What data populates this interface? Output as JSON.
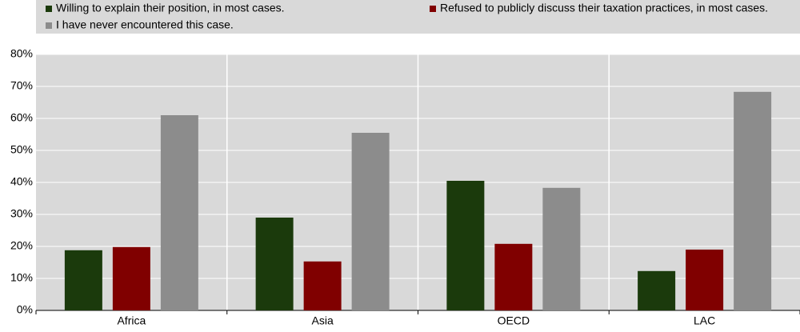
{
  "chart_data": {
    "type": "bar",
    "categories": [
      "Africa",
      "Asia",
      "OECD",
      "LAC"
    ],
    "series": [
      {
        "name": "Willing to explain their position, in most cases.",
        "color": "#1b3a0c",
        "values": [
          18.8,
          29,
          40.5,
          12.3
        ]
      },
      {
        "name": "Refused to publicly discuss their taxation practices, in most cases.",
        "color": "#800000",
        "values": [
          19.8,
          15.3,
          20.8,
          19
        ]
      },
      {
        "name": "I have never encountered this case.",
        "color": "#8c8c8c",
        "values": [
          61,
          55.5,
          38.3,
          68.3
        ]
      }
    ],
    "ylim": [
      0,
      80
    ],
    "yticks": [
      {
        "value": 0,
        "label": "0%"
      },
      {
        "value": 10,
        "label": "10%"
      },
      {
        "value": 20,
        "label": "20%"
      },
      {
        "value": 30,
        "label": "30%"
      },
      {
        "value": 40,
        "label": "40%"
      },
      {
        "value": 50,
        "label": "50%"
      },
      {
        "value": 60,
        "label": "60%"
      },
      {
        "value": 70,
        "label": "70%"
      },
      {
        "value": 80,
        "label": "80%"
      }
    ],
    "grid": true
  }
}
